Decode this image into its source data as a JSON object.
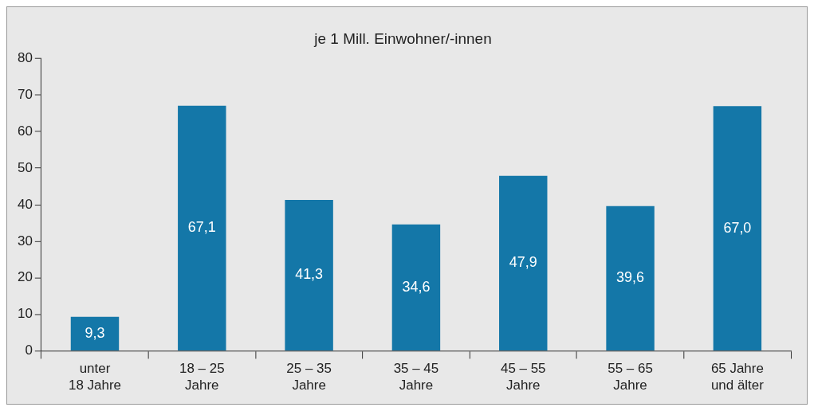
{
  "chart_data": {
    "type": "bar",
    "title": "je 1 Mill. Einwohner/-innen",
    "categories": [
      "unter\n18 Jahre",
      "18 – 25\nJahre",
      "25 – 35\nJahre",
      "35 – 45\nJahre",
      "45 – 55\nJahre",
      "55 – 65\nJahre",
      "65 Jahre\nund älter"
    ],
    "values": [
      9.3,
      67.1,
      41.3,
      34.6,
      47.9,
      39.6,
      67.0
    ],
    "value_labels": [
      "9,3",
      "67,1",
      "41,3",
      "34,6",
      "47,9",
      "39,6",
      "67,0"
    ],
    "color": "#1477a8",
    "ylim": [
      0,
      80
    ],
    "yticks": [
      0,
      10,
      20,
      30,
      40,
      50,
      60,
      70,
      80
    ],
    "grid": false,
    "legend": false
  }
}
